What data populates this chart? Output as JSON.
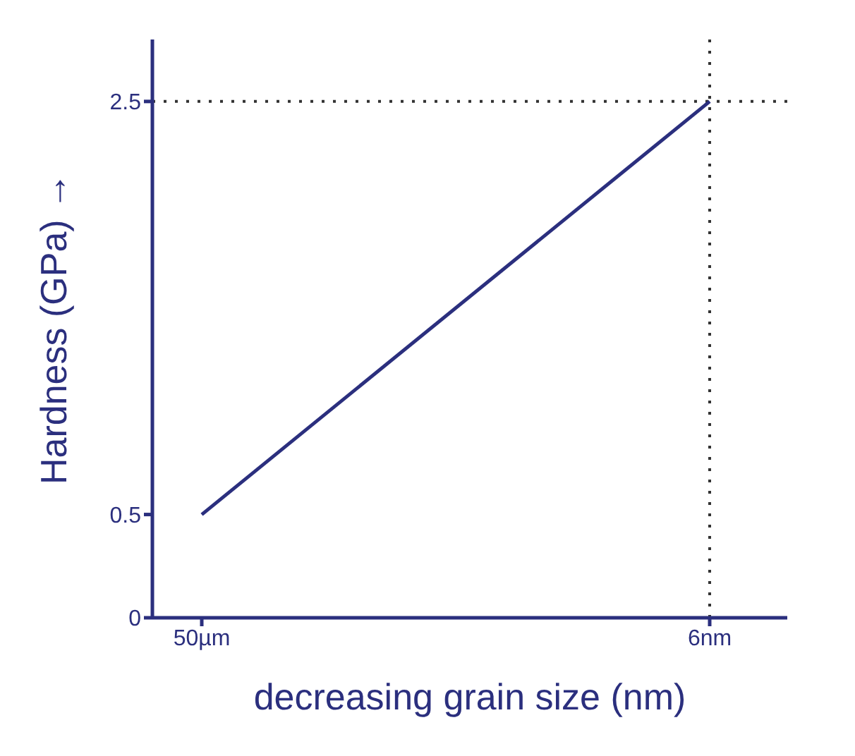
{
  "chart_data": {
    "type": "line",
    "xlabel": "decreasing grain size (nm)",
    "ylabel": "Hardness (GPa) →",
    "categories": [
      "50µm",
      "6nm"
    ],
    "series": [
      {
        "color": "#2b2f7e",
        "values": [
          0.5,
          2.5
        ]
      }
    ],
    "ylim": [
      0,
      2.8
    ],
    "yticks": [
      0,
      0.5,
      2.5
    ],
    "marker": "none",
    "line_style": "solid",
    "grid": false,
    "legend": false,
    "ref_lines": [
      {
        "axis": "y",
        "value": 2.5,
        "line_style": "dotted",
        "color": "#333333"
      },
      {
        "axis": "x",
        "value": "6nm",
        "line_style": "dotted",
        "color": "#333333"
      }
    ]
  }
}
